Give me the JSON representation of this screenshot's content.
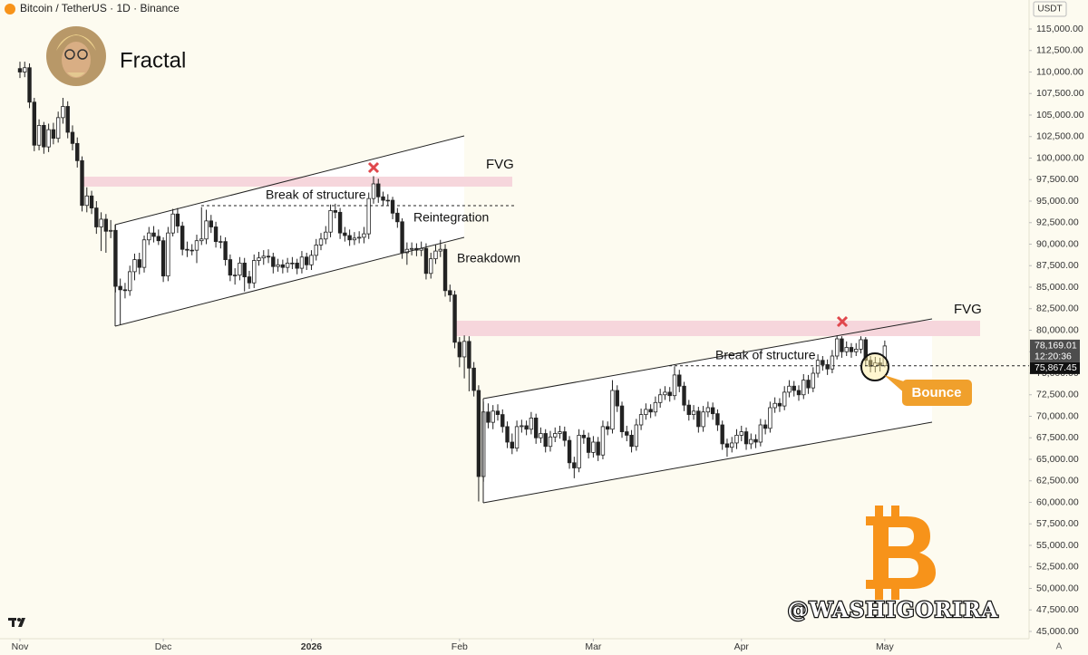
{
  "chart_data": {
    "type": "candlestick",
    "title": "Bitcoin / TetherUS · 1D · Binance",
    "currency": "USDT",
    "author": "Fractal",
    "watermark": "@WASHIGORIRA",
    "scale_button": "A",
    "annotations": [
      "FVG",
      "Break of structure",
      "Reintegration",
      "Breakdown",
      "FVG",
      "Break of structure",
      "Bounce"
    ],
    "last_price": {
      "value": 78169.01,
      "label": "78,169.01",
      "countdown": "12:20:36"
    },
    "level": {
      "value": 75867.45,
      "label": "75,867.45"
    },
    "up_color": "#ffffff",
    "down_color": "#222222",
    "outline_color": "#222222",
    "grid": false,
    "ylim": [
      44158,
      118368
    ],
    "yticks": [
      {
        "value": 45000,
        "label": "45,000.00"
      },
      {
        "value": 47500,
        "label": "47,500.00"
      },
      {
        "value": 50000,
        "label": "50,000.00"
      },
      {
        "value": 52500,
        "label": "52,500.00"
      },
      {
        "value": 55000,
        "label": "55,000.00"
      },
      {
        "value": 57500,
        "label": "57,500.00"
      },
      {
        "value": 60000,
        "label": "60,000.00"
      },
      {
        "value": 62500,
        "label": "62,500.00"
      },
      {
        "value": 65000,
        "label": "65,000.00"
      },
      {
        "value": 67500,
        "label": "67,500.00"
      },
      {
        "value": 70000,
        "label": "70,000.00"
      },
      {
        "value": 72500,
        "label": "72,500.00"
      },
      {
        "value": 75000,
        "label": "75,000.00"
      },
      {
        "value": 77500,
        "label": "77,500.00"
      },
      {
        "value": 80000,
        "label": "80,000.00"
      },
      {
        "value": 82500,
        "label": "82,500.00"
      },
      {
        "value": 85000,
        "label": "85,000.00"
      },
      {
        "value": 87500,
        "label": "87,500.00"
      },
      {
        "value": 90000,
        "label": "90,000.00"
      },
      {
        "value": 92500,
        "label": "92,500.00"
      },
      {
        "value": 95000,
        "label": "95,000.00"
      },
      {
        "value": 97500,
        "label": "97,500.00"
      },
      {
        "value": 100000,
        "label": "100,000.00"
      },
      {
        "value": 102500,
        "label": "102,500.00"
      },
      {
        "value": 105000,
        "label": "105,000.00"
      },
      {
        "value": 107500,
        "label": "107,500.00"
      },
      {
        "value": 110000,
        "label": "110,000.00"
      },
      {
        "value": 112500,
        "label": "112,500.00"
      },
      {
        "value": 115000,
        "label": "115,000.00"
      }
    ],
    "xticks": [
      {
        "value": 0,
        "label": "Nov"
      },
      {
        "value": 30,
        "label": "Dec"
      },
      {
        "value": 61,
        "label": "2026"
      },
      {
        "value": 92,
        "label": "Feb"
      },
      {
        "value": 120,
        "label": "Mar"
      },
      {
        "value": 151,
        "label": "Apr"
      },
      {
        "value": 181,
        "label": "May"
      }
    ],
    "open": [
      110400,
      110000,
      110500,
      106500,
      101500,
      103800,
      101300,
      103300,
      102300,
      104700,
      106000,
      103000,
      101700,
      99700,
      94500,
      95600,
      94200,
      92000,
      92900,
      91500,
      91600,
      85100,
      84700,
      84600,
      86800,
      88200,
      87300,
      90500,
      91300,
      90900,
      90400,
      86300,
      91300,
      93500,
      92100,
      89400,
      89300,
      89300,
      90400,
      90600,
      92700,
      92000,
      90300,
      90300,
      88200,
      86400,
      86400,
      87800,
      86200,
      85500,
      88100,
      88400,
      88600,
      88500,
      87400,
      87600,
      87300,
      87800,
      87800,
      87200,
      88500,
      87600,
      88700,
      89900,
      90600,
      91400,
      93900,
      93700,
      91300,
      91000,
      90500,
      90700,
      90800,
      91200,
      95300,
      97000,
      95500,
      95100,
      95100,
      93600,
      92600,
      89000,
      89400,
      89500,
      89300,
      89500,
      86600,
      88300,
      89200,
      89400,
      84600,
      84100,
      78600,
      76900,
      78700,
      75600,
      73000,
      63000,
      70500,
      69300,
      70600,
      70200,
      68800,
      67000,
      66300,
      68800,
      68900,
      68500,
      69800,
      67500,
      68000,
      66500,
      67600,
      68000,
      68200,
      67200,
      64600,
      64000,
      67800,
      67500,
      65800,
      67000,
      65500,
      68800,
      68500,
      73000,
      71200,
      68200,
      67800,
      66500,
      69000,
      70200,
      70800,
      70500,
      71600,
      72500,
      72800,
      72400,
      74800,
      73500,
      71300,
      70200,
      70600,
      68800,
      70500,
      71000,
      70300,
      69000,
      66800,
      66400,
      66900,
      67800,
      68200,
      66800,
      67300,
      67000,
      69000,
      68600,
      71000,
      71500,
      71200,
      72800,
      73500,
      73000,
      72500,
      74200,
      73300,
      75000,
      76500,
      76000,
      75500,
      77000,
      79000,
      77500,
      78000,
      77500,
      77800,
      78900,
      76500,
      75800,
      76200,
      75900
    ],
    "high": [
      111200,
      111200,
      111000,
      107000,
      104500,
      104200,
      104000,
      104100,
      105400,
      107000,
      106600,
      103800,
      102400,
      100200,
      96600,
      96200,
      95000,
      93700,
      93500,
      92800,
      92300,
      86000,
      85500,
      87500,
      88900,
      89000,
      91000,
      92000,
      92100,
      91700,
      90800,
      92000,
      94100,
      94200,
      92600,
      90300,
      90000,
      91100,
      94300,
      94000,
      93400,
      92600,
      91000,
      90800,
      88800,
      87200,
      88500,
      88400,
      86900,
      88800,
      89100,
      89300,
      89400,
      89000,
      88300,
      88200,
      88400,
      88500,
      88300,
      89200,
      89000,
      89300,
      90600,
      91300,
      92100,
      94600,
      94700,
      94200,
      92000,
      91700,
      91400,
      91500,
      92000,
      96000,
      97900,
      97600,
      96100,
      95800,
      95500,
      94200,
      93000,
      90200,
      90200,
      90100,
      90300,
      90100,
      89000,
      89900,
      90500,
      90000,
      85300,
      84600,
      79200,
      79400,
      79300,
      76300,
      73600,
      71700,
      71500,
      71300,
      71400,
      70800,
      69400,
      68000,
      69500,
      69600,
      69500,
      70500,
      70300,
      68700,
      68500,
      68300,
      68700,
      68900,
      68800,
      67700,
      65300,
      68500,
      68400,
      68100,
      67700,
      67600,
      69500,
      69400,
      74200,
      73600,
      71700,
      68900,
      68400,
      69700,
      70900,
      71500,
      71400,
      72300,
      73200,
      73500,
      73400,
      75800,
      75400,
      74000,
      71900,
      71300,
      71100,
      71200,
      71700,
      71600,
      70800,
      69500,
      67400,
      67600,
      68500,
      68900,
      68700,
      68000,
      67900,
      69700,
      69600,
      71700,
      72200,
      72100,
      73500,
      74200,
      74100,
      73600,
      74900,
      74800,
      75700,
      77200,
      77000,
      76600,
      77700,
      79400,
      79300,
      78700,
      78500,
      78500,
      79300,
      79200,
      77000,
      76900,
      76800,
      78800
    ],
    "low": [
      109300,
      109400,
      105800,
      100800,
      100900,
      100500,
      100700,
      101600,
      101800,
      104000,
      102300,
      100900,
      98900,
      93800,
      93700,
      93500,
      91200,
      89200,
      89000,
      90700,
      84400,
      80600,
      83700,
      84000,
      85800,
      86500,
      86700,
      89900,
      90200,
      89900,
      85600,
      85700,
      90900,
      91300,
      88700,
      88500,
      88700,
      87800,
      89900,
      90000,
      91300,
      89600,
      89500,
      87500,
      85700,
      85300,
      85800,
      84500,
      84800,
      84900,
      87500,
      87600,
      87800,
      86600,
      86800,
      86600,
      86700,
      87100,
      86500,
      86600,
      87000,
      87000,
      88100,
      89300,
      90000,
      90800,
      93000,
      90600,
      90300,
      89800,
      89900,
      90100,
      90100,
      90600,
      94700,
      94800,
      94400,
      94500,
      92900,
      91900,
      88300,
      87600,
      88700,
      88600,
      88600,
      85900,
      86000,
      87700,
      88500,
      83900,
      83300,
      77900,
      75700,
      74400,
      72900,
      72300,
      60100,
      62400,
      68600,
      68500,
      69500,
      68100,
      66300,
      65600,
      65900,
      68100,
      67800,
      67900,
      66800,
      66900,
      65800,
      65900,
      67000,
      67400,
      66500,
      63900,
      62800,
      63500,
      66800,
      65100,
      65200,
      64800,
      65000,
      67800,
      68000,
      70500,
      67500,
      67100,
      65800,
      66000,
      68400,
      69600,
      69800,
      70000,
      71000,
      71900,
      71700,
      71900,
      72800,
      70600,
      69500,
      69600,
      68100,
      68200,
      69900,
      69600,
      68300,
      66100,
      65300,
      65800,
      66200,
      67100,
      66100,
      66200,
      66300,
      66500,
      67900,
      68100,
      70400,
      70500,
      70700,
      72200,
      72300,
      71800,
      72000,
      72600,
      72800,
      74500,
      75300,
      74800,
      75000,
      76600,
      76800,
      77000,
      76800,
      77000,
      77300,
      75800,
      75100,
      75100,
      75200,
      75700
    ],
    "close": [
      110000,
      110500,
      106500,
      101500,
      103800,
      101300,
      103300,
      102300,
      104700,
      106000,
      103000,
      101700,
      99700,
      94500,
      95600,
      94200,
      92000,
      92900,
      91500,
      91600,
      85100,
      84700,
      84600,
      86800,
      88200,
      87300,
      90500,
      91300,
      90900,
      90400,
      86300,
      91300,
      93500,
      92100,
      89400,
      89300,
      89300,
      90400,
      90600,
      92700,
      92000,
      90300,
      90300,
      88200,
      86400,
      86400,
      87800,
      86200,
      85500,
      88100,
      88400,
      88600,
      88500,
      87400,
      87600,
      87300,
      87800,
      87800,
      87200,
      88500,
      87600,
      88700,
      89900,
      90600,
      91400,
      93900,
      93700,
      91300,
      91000,
      90500,
      90700,
      90800,
      91200,
      95300,
      97000,
      95500,
      95100,
      95100,
      93600,
      92600,
      89000,
      89400,
      89500,
      89300,
      89500,
      86600,
      88300,
      89200,
      89400,
      84600,
      84100,
      78600,
      76900,
      78700,
      75600,
      73000,
      63000,
      70500,
      69300,
      70600,
      70200,
      68800,
      67000,
      66300,
      68800,
      68900,
      68500,
      69800,
      67500,
      68000,
      66500,
      67600,
      68000,
      68200,
      67200,
      64600,
      64000,
      67800,
      67500,
      65800,
      67000,
      65500,
      68800,
      68500,
      73000,
      71200,
      68200,
      67800,
      66500,
      69000,
      70200,
      70800,
      70500,
      71600,
      72500,
      72800,
      72400,
      74800,
      73500,
      71300,
      70200,
      70600,
      68800,
      70500,
      71000,
      70300,
      69000,
      66800,
      66400,
      66900,
      67800,
      68200,
      66800,
      67300,
      67000,
      69000,
      68600,
      71000,
      71500,
      71200,
      72800,
      73500,
      73000,
      72500,
      74200,
      73300,
      75000,
      76500,
      76000,
      75500,
      77000,
      79000,
      77500,
      78000,
      77500,
      77800,
      78900,
      76500,
      75800,
      76200,
      75900,
      78169.01
    ]
  }
}
